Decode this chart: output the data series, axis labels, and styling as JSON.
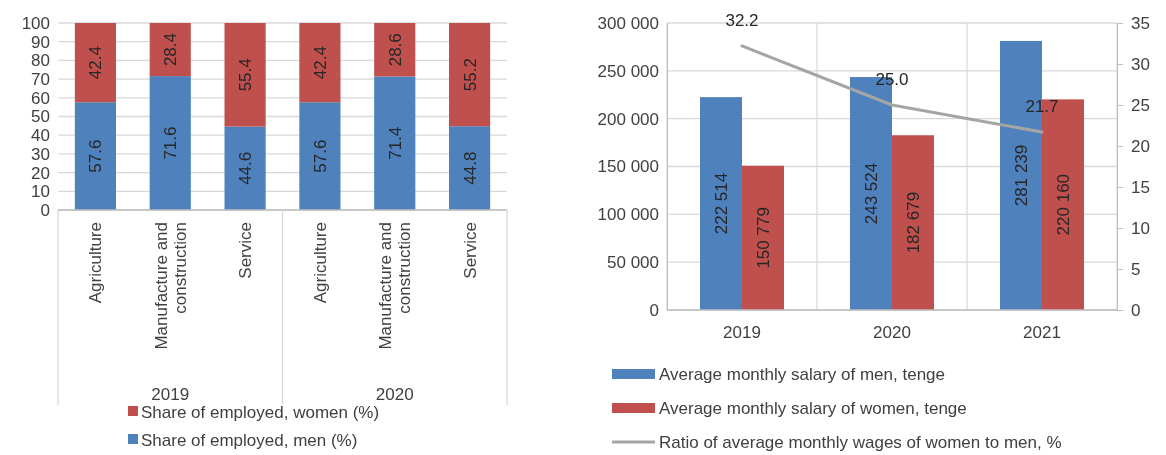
{
  "chart_data": [
    {
      "type": "bar",
      "stacked": true,
      "categories": [
        "Agriculture",
        "Manufacture and construction",
        "Service",
        "Agriculture",
        "Manufacture and construction",
        "Service"
      ],
      "series": [
        {
          "name": "Share of employed, men (%)",
          "color": "#4f81bd",
          "values": [
            57.6,
            71.6,
            44.6,
            57.6,
            71.4,
            44.8
          ]
        },
        {
          "name": "Share of employed, women (%)",
          "color": "#c0504d",
          "values": [
            42.4,
            28.4,
            55.4,
            42.4,
            28.6,
            55.2
          ]
        }
      ],
      "ylim": [
        0,
        100
      ],
      "yticks": [
        0,
        10,
        20,
        30,
        40,
        50,
        60,
        70,
        80,
        90,
        100
      ],
      "grid": "y",
      "legend": "bottom",
      "data_labels": true,
      "annotations": [
        "2019",
        "2020"
      ]
    },
    {
      "type": "bar",
      "categories": [
        "2019",
        "2020",
        "2021"
      ],
      "series": [
        {
          "name": "Average monthly salary of men, tenge",
          "color": "#4f81bd",
          "values": [
            222514,
            243524,
            281239
          ],
          "value_labels": [
            "222 514",
            "243 524",
            "281 239"
          ]
        },
        {
          "name": "Average monthly salary of women, tenge",
          "color": "#c0504d",
          "values": [
            150779,
            182679,
            220160
          ],
          "value_labels": [
            "150 779",
            "182 679",
            "220 160"
          ]
        },
        {
          "name": "Ratio of average monthly wages of women to men, %",
          "type": "line",
          "axis": "y2",
          "color": "#a5a5a5",
          "values": [
            32.2,
            25.0,
            21.7
          ],
          "value_labels": [
            "32.2",
            "25.0",
            "21.7"
          ]
        }
      ],
      "ylim": [
        0,
        300000
      ],
      "yticks": [
        {
          "value": 0,
          "label": "0"
        },
        {
          "value": 50000,
          "label": "50 000"
        },
        {
          "value": 100000,
          "label": "100 000"
        },
        {
          "value": 150000,
          "label": "150 000"
        },
        {
          "value": 200000,
          "label": "200 000"
        },
        {
          "value": 250000,
          "label": "250 000"
        },
        {
          "value": 300000,
          "label": "300 000"
        }
      ],
      "y2lim": [
        0,
        35
      ],
      "y2ticks": [
        0,
        5,
        10,
        15,
        20,
        25,
        30,
        35
      ],
      "grid": true,
      "legend": "bottom",
      "marker": "none"
    }
  ]
}
